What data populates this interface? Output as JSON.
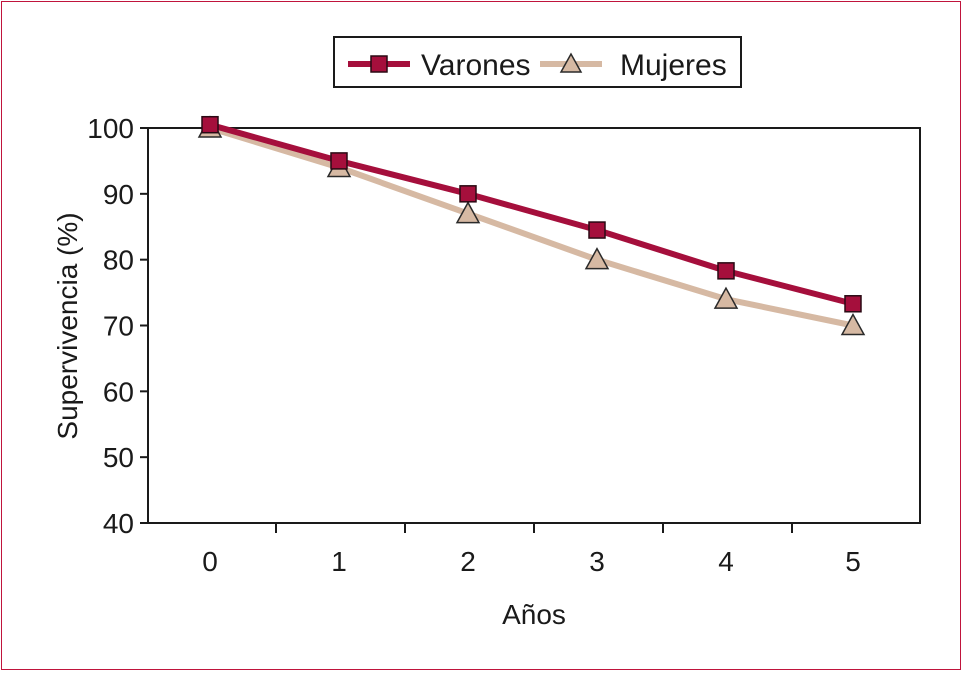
{
  "chart_data": {
    "type": "line",
    "title": "",
    "xlabel": "Años",
    "ylabel": "Supervivencia (%)",
    "x": [
      0,
      1,
      2,
      3,
      4,
      5
    ],
    "x_tick_labels": [
      "0",
      "1",
      "2",
      "3",
      "4",
      "5"
    ],
    "y_tick_labels": [
      "40",
      "50",
      "60",
      "70",
      "80",
      "90",
      "100"
    ],
    "ylim": [
      40,
      100
    ],
    "y_ticks": [
      40,
      50,
      60,
      70,
      80,
      90,
      100
    ],
    "grid": false,
    "legend_position": "top-center",
    "series": [
      {
        "name": "Varones",
        "marker": "square",
        "color": "#a50f3c",
        "values": [
          100.5,
          95,
          90,
          84.5,
          78.3,
          73.3
        ]
      },
      {
        "name": "Mujeres",
        "marker": "triangle",
        "color": "#d6b9a3",
        "values": [
          100,
          94,
          87,
          80,
          74,
          70
        ]
      }
    ]
  },
  "frame_color": "#c0143c"
}
